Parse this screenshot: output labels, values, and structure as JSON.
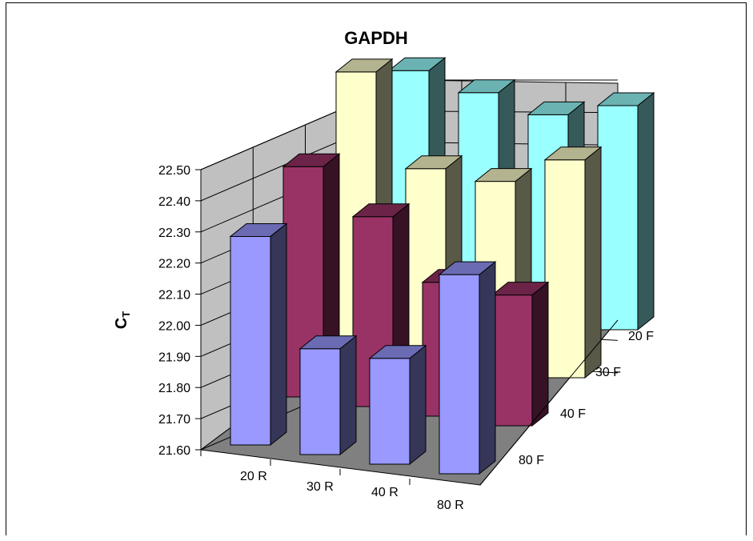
{
  "chart_data": {
    "type": "bar3d",
    "title": "GAPDH",
    "ylabel_main": "C",
    "ylabel_sub": "T",
    "xlabel": "",
    "zlabel": "",
    "ylim": [
      21.6,
      22.5
    ],
    "yticks": [
      "21.60",
      "21.70",
      "21.80",
      "21.90",
      "22.00",
      "22.10",
      "22.20",
      "22.30",
      "22.40",
      "22.50"
    ],
    "categories": [
      "20 R",
      "30 R",
      "40 R",
      "80 R"
    ],
    "depth_categories": [
      "20 F",
      "30 F",
      "40 F",
      "80 F"
    ],
    "grid": true,
    "legend": "none",
    "series": [
      {
        "depth": "80 F",
        "color": "#9999ff",
        "values": [
          22.27,
          21.94,
          21.94,
          22.24
        ]
      },
      {
        "depth": "40 F",
        "color": "#993366",
        "values": [
          22.34,
          22.21,
          22.03,
          22.02
        ]
      },
      {
        "depth": "30 F",
        "color": "#ffffcc",
        "values": [
          22.49,
          22.21,
          22.2,
          22.3
        ]
      },
      {
        "depth": "20 F",
        "color": "#99ffff",
        "values": [
          22.34,
          22.3,
          22.26,
          22.32
        ]
      }
    ]
  }
}
